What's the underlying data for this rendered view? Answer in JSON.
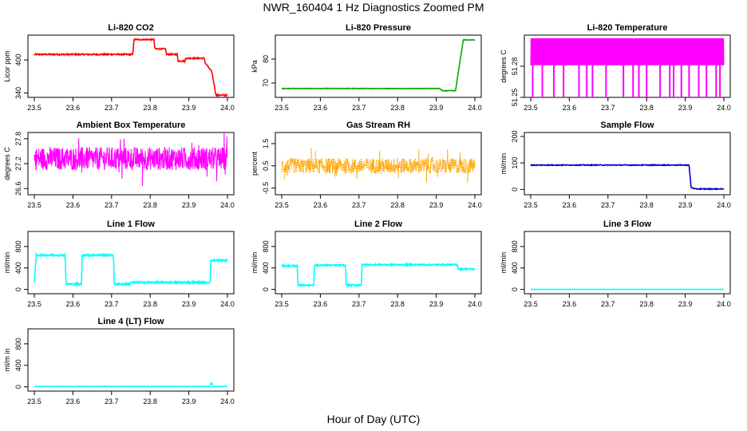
{
  "figure": {
    "title": "NWR_160404  1 Hz Diagnostics Zoomed PM",
    "xlabel": "Hour of Day (UTC)"
  },
  "chart_data": [
    {
      "type": "line",
      "title": "Li-820 CO2",
      "ylabel": "Licor ppm",
      "color": "#ff0000",
      "xlim": [
        23.5,
        24.0
      ],
      "ylim": [
        332,
        445
      ],
      "xticks": [
        "23.5",
        "23.6",
        "23.7",
        "23.8",
        "23.9",
        "24.0"
      ],
      "yticks": [
        "340",
        "400"
      ],
      "noise": 1.2,
      "render": "line",
      "series": [
        {
          "name": "CO2",
          "x": [
            23.5,
            23.755,
            23.758,
            23.81,
            23.812,
            23.84,
            23.842,
            23.87,
            23.872,
            23.89,
            23.892,
            23.94,
            23.942,
            23.96,
            23.97,
            24.0
          ],
          "y": [
            410,
            410,
            437,
            437,
            420,
            420,
            410,
            410,
            398,
            398,
            403,
            403,
            395,
            378,
            336,
            336
          ]
        }
      ]
    },
    {
      "type": "line",
      "title": "Li-820 Pressure",
      "ylabel": "kPa",
      "color": "#00aa00",
      "xlim": [
        23.5,
        24.0
      ],
      "ylim": [
        64,
        90
      ],
      "xticks": [
        "23.5",
        "23.6",
        "23.7",
        "23.8",
        "23.9",
        "24.0"
      ],
      "yticks": [
        "70",
        "80"
      ],
      "noise": 0.1,
      "render": "line",
      "series": [
        {
          "name": "Pressure",
          "x": [
            23.5,
            23.91,
            23.915,
            23.95,
            23.97,
            24.0
          ],
          "y": [
            67.7,
            67.7,
            66.8,
            66.8,
            88.0,
            88.0
          ]
        }
      ]
    },
    {
      "type": "line",
      "title": "Li-820 Temperature",
      "ylabel": "degrees C",
      "color": "#ff00ff",
      "xlim": [
        23.5,
        24.0
      ],
      "ylim": [
        51.25,
        51.31
      ],
      "xticks": [
        "23.5",
        "23.6",
        "23.7",
        "23.8",
        "23.9",
        "24.0"
      ],
      "yticks": [
        "51.25",
        "51.28"
      ],
      "noise": 0,
      "render": "digital",
      "series": [
        {
          "name": "Temperature",
          "x": [
            23.5,
            24.0
          ],
          "levels": [
            51.281,
            51.307
          ],
          "dips": [
            23.505,
            23.53,
            23.56,
            23.585,
            23.625,
            23.645,
            23.66,
            23.695,
            23.74,
            23.765,
            23.78,
            23.8,
            23.835,
            23.86,
            23.87,
            23.89,
            23.91,
            23.935,
            23.955,
            23.98,
            23.99
          ],
          "low": 51.25
        }
      ]
    },
    {
      "type": "line",
      "title": "Ambient Box Temperature",
      "ylabel": "degrees C",
      "color": "#ff00ff",
      "xlim": [
        23.5,
        24.0
      ],
      "ylim": [
        26.45,
        27.95
      ],
      "xticks": [
        "23.5",
        "23.6",
        "23.7",
        "23.8",
        "23.9",
        "24.0"
      ],
      "yticks": [
        "26.6",
        "27.2",
        "27.8"
      ],
      "noise": 0.28,
      "render": "noise",
      "series": [
        {
          "name": "Box Temp",
          "x": [
            23.5,
            24.0
          ],
          "y": [
            27.32,
            27.32
          ]
        }
      ]
    },
    {
      "type": "line",
      "title": "Gas Stream RH",
      "ylabel": "percent",
      "color": "#ffa500",
      "xlim": [
        23.5,
        24.0
      ],
      "ylim": [
        -0.8,
        2.0
      ],
      "xticks": [
        "23.5",
        "23.6",
        "23.7",
        "23.8",
        "23.9",
        "24.0"
      ],
      "yticks": [
        "-0.5",
        "0.5",
        "1.5"
      ],
      "noise": 0.35,
      "render": "noise",
      "series": [
        {
          "name": "RH",
          "x": [
            23.5,
            24.0
          ],
          "y": [
            0.5,
            0.5
          ]
        }
      ]
    },
    {
      "type": "line",
      "title": "Sample Flow",
      "ylabel": "ml/min",
      "color": "#0000cc",
      "xlim": [
        23.5,
        24.0
      ],
      "ylim": [
        -20,
        215
      ],
      "xticks": [
        "23.5",
        "23.6",
        "23.7",
        "23.8",
        "23.9",
        "24.0"
      ],
      "yticks": [
        "0",
        "100",
        "200"
      ],
      "noise": 1.5,
      "render": "line",
      "series": [
        {
          "name": "Sample Flow",
          "x": [
            23.5,
            23.91,
            23.915,
            23.925,
            24.0
          ],
          "y": [
            92,
            92,
            8,
            2,
            2
          ]
        }
      ]
    },
    {
      "type": "line",
      "title": "Line 1 Flow",
      "ylabel": "ml/min",
      "color": "#00ffff",
      "xlim": [
        23.5,
        24.0
      ],
      "ylim": [
        -80,
        1080
      ],
      "xticks": [
        "23.5",
        "23.6",
        "23.7",
        "23.8",
        "23.9",
        "24.0"
      ],
      "yticks": [
        "0",
        "400",
        "800"
      ],
      "noise": 18,
      "render": "line",
      "series": [
        {
          "name": "Line 1",
          "x": [
            23.5,
            23.505,
            23.58,
            23.582,
            23.622,
            23.624,
            23.705,
            23.707,
            23.748,
            23.75,
            23.955,
            23.957,
            24.0
          ],
          "y": [
            120,
            640,
            640,
            100,
            100,
            640,
            640,
            100,
            100,
            130,
            130,
            540,
            540
          ]
        }
      ]
    },
    {
      "type": "line",
      "title": "Line 2 Flow",
      "ylabel": "ml/min",
      "color": "#00ffff",
      "xlim": [
        23.5,
        24.0
      ],
      "ylim": [
        -80,
        1080
      ],
      "xticks": [
        "23.5",
        "23.6",
        "23.7",
        "23.8",
        "23.9",
        "24.0"
      ],
      "yticks": [
        "0",
        "400",
        "800"
      ],
      "noise": 14,
      "render": "line",
      "series": [
        {
          "name": "Line 2",
          "x": [
            23.5,
            23.54,
            23.542,
            23.583,
            23.585,
            23.665,
            23.667,
            23.706,
            23.708,
            23.955,
            23.957,
            24.0
          ],
          "y": [
            440,
            440,
            80,
            80,
            450,
            450,
            80,
            80,
            460,
            460,
            380,
            380
          ]
        }
      ]
    },
    {
      "type": "line",
      "title": "Line 3 Flow",
      "ylabel": "ml/min",
      "color": "#00ffff",
      "xlim": [
        23.5,
        24.0
      ],
      "ylim": [
        -80,
        1080
      ],
      "xticks": [
        "23.5",
        "23.6",
        "23.7",
        "23.8",
        "23.9",
        "24.0"
      ],
      "yticks": [
        "0",
        "400",
        "800"
      ],
      "noise": 0,
      "render": "line",
      "series": [
        {
          "name": "Line 3",
          "x": [
            23.5,
            24.0
          ],
          "y": [
            0,
            0
          ]
        }
      ]
    },
    {
      "type": "line",
      "title": "Line 4 (LT) Flow",
      "ylabel": "ml/m in",
      "color": "#00ffff",
      "xlim": [
        23.5,
        24.0
      ],
      "ylim": [
        -80,
        1080
      ],
      "xticks": [
        "23.5",
        "23.6",
        "23.7",
        "23.8",
        "23.9",
        "24.0"
      ],
      "yticks": [
        "0",
        "400",
        "800"
      ],
      "noise": 2,
      "render": "line",
      "series": [
        {
          "name": "Line 4",
          "x": [
            23.5,
            23.955,
            23.957,
            23.96,
            23.962,
            24.0
          ],
          "y": [
            8,
            8,
            70,
            70,
            8,
            8
          ]
        }
      ]
    }
  ]
}
